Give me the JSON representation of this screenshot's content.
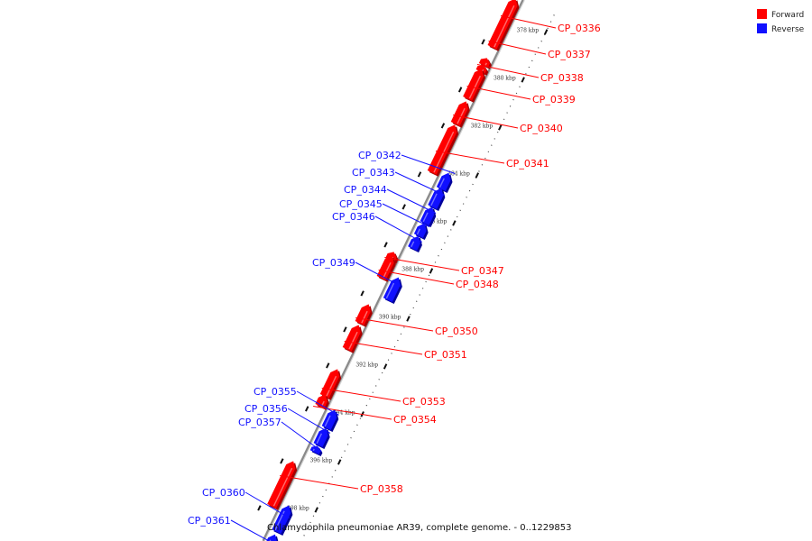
{
  "caption": "Chlamydophila pneumoniae AR39, complete genome. - 0..1229853",
  "legend": {
    "placement": "top-right",
    "items": [
      {
        "label": "Forward",
        "color": "#ff0000"
      },
      {
        "label": "Reverse",
        "color": "#1010ff"
      }
    ]
  },
  "colors": {
    "forward": "#ff0000",
    "forward_shade": "#a80000",
    "forward_light": "#ff9a9a",
    "reverse": "#1010ff",
    "reverse_shade": "#00009a",
    "reverse_light": "#9a9aff",
    "backbone": "#8a8a8a",
    "ticks": "#111111"
  },
  "ticks": [
    "378 kbp",
    "380 kbp",
    "382 kbp",
    "384 kbp",
    "386 kbp",
    "388 kbp",
    "390 kbp",
    "392 kbp",
    "394 kbp",
    "396 kbp",
    "398 kbp"
  ],
  "genes": [
    {
      "id": "CP_0336",
      "strand": "forward"
    },
    {
      "id": "CP_0337",
      "strand": "forward"
    },
    {
      "id": "CP_0338",
      "strand": "forward"
    },
    {
      "id": "CP_0339",
      "strand": "forward"
    },
    {
      "id": "CP_0340",
      "strand": "forward"
    },
    {
      "id": "CP_0341",
      "strand": "forward"
    },
    {
      "id": "CP_0342",
      "strand": "reverse"
    },
    {
      "id": "CP_0343",
      "strand": "reverse"
    },
    {
      "id": "CP_0344",
      "strand": "reverse"
    },
    {
      "id": "CP_0345",
      "strand": "reverse"
    },
    {
      "id": "CP_0346",
      "strand": "reverse"
    },
    {
      "id": "CP_0347",
      "strand": "forward"
    },
    {
      "id": "CP_0348",
      "strand": "forward"
    },
    {
      "id": "CP_0349",
      "strand": "reverse"
    },
    {
      "id": "CP_0350",
      "strand": "forward"
    },
    {
      "id": "CP_0351",
      "strand": "forward"
    },
    {
      "id": "CP_0353",
      "strand": "forward"
    },
    {
      "id": "CP_0354",
      "strand": "forward"
    },
    {
      "id": "CP_0355",
      "strand": "reverse"
    },
    {
      "id": "CP_0356",
      "strand": "reverse"
    },
    {
      "id": "CP_0357",
      "strand": "reverse"
    },
    {
      "id": "CP_0358",
      "strand": "forward"
    },
    {
      "id": "CP_0360",
      "strand": "reverse"
    },
    {
      "id": "CP_0361",
      "strand": "reverse"
    }
  ]
}
